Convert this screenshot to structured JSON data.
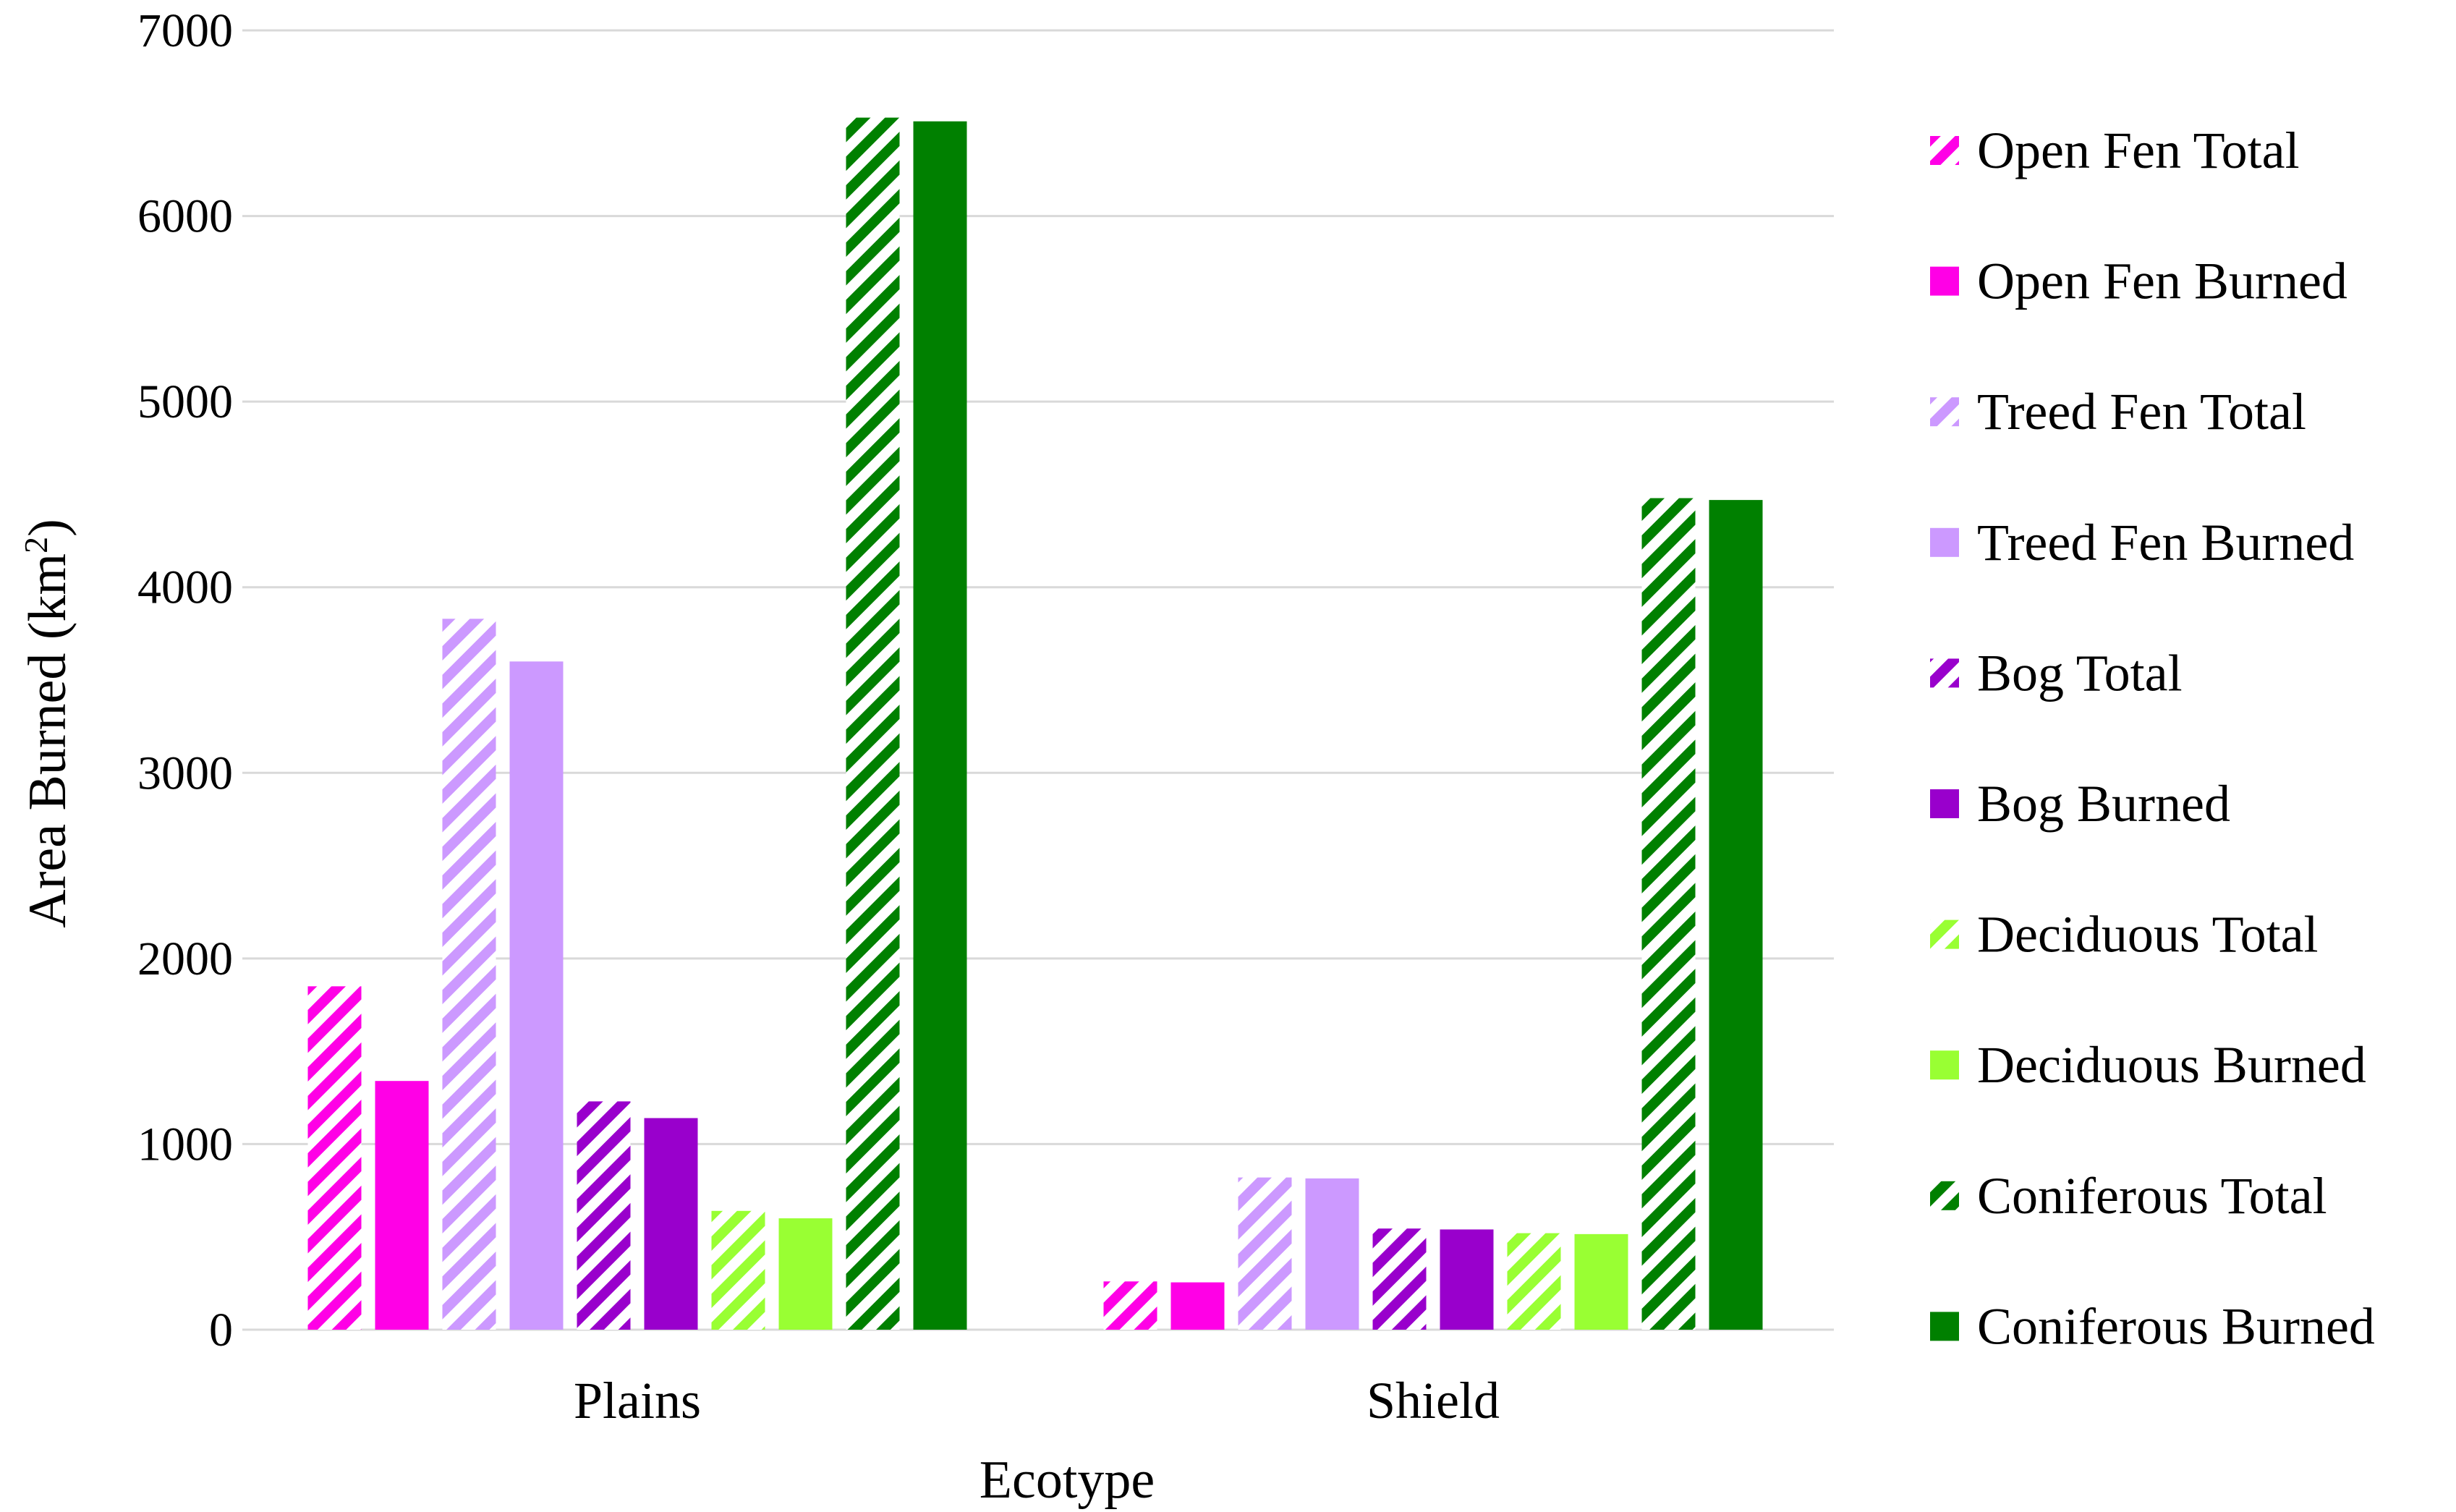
{
  "chart_data": {
    "type": "bar",
    "title": "",
    "xlabel": "Ecotype",
    "ylabel": "Area Burned (km",
    "ylabel_sup": "2",
    "ylabel_close": ")",
    "ylim": [
      0,
      7000
    ],
    "yticks": [
      0,
      1000,
      2000,
      3000,
      4000,
      5000,
      6000,
      7000
    ],
    "grid": true,
    "legend_position": "right",
    "categories": [
      "Plains",
      "Shield"
    ],
    "series": [
      {
        "name": "Open Fen Total",
        "color": "#ff00e6",
        "pattern": "hatched",
        "values": [
          1850,
          260
        ]
      },
      {
        "name": "Open Fen Burned",
        "color": "#ff00e6",
        "pattern": "solid",
        "values": [
          1340,
          255
        ]
      },
      {
        "name": "Treed Fen Total",
        "color": "#cc99ff",
        "pattern": "hatched",
        "values": [
          3830,
          820
        ]
      },
      {
        "name": "Treed Fen Burned",
        "color": "#cc99ff",
        "pattern": "solid",
        "values": [
          3600,
          815
        ]
      },
      {
        "name": "Bog Total",
        "color": "#9900cc",
        "pattern": "hatched",
        "values": [
          1230,
          545
        ]
      },
      {
        "name": "Bog Burned",
        "color": "#9900cc",
        "pattern": "solid",
        "values": [
          1140,
          540
        ]
      },
      {
        "name": "Deciduous Total",
        "color": "#99ff33",
        "pattern": "hatched",
        "values": [
          640,
          520
        ]
      },
      {
        "name": "Deciduous Burned",
        "color": "#99ff33",
        "pattern": "solid",
        "values": [
          600,
          515
        ]
      },
      {
        "name": "Coniferous Total",
        "color": "#008000",
        "pattern": "hatched",
        "values": [
          6530,
          4480
        ]
      },
      {
        "name": "Coniferous Burned",
        "color": "#008000",
        "pattern": "solid",
        "values": [
          6510,
          4470
        ]
      }
    ]
  }
}
